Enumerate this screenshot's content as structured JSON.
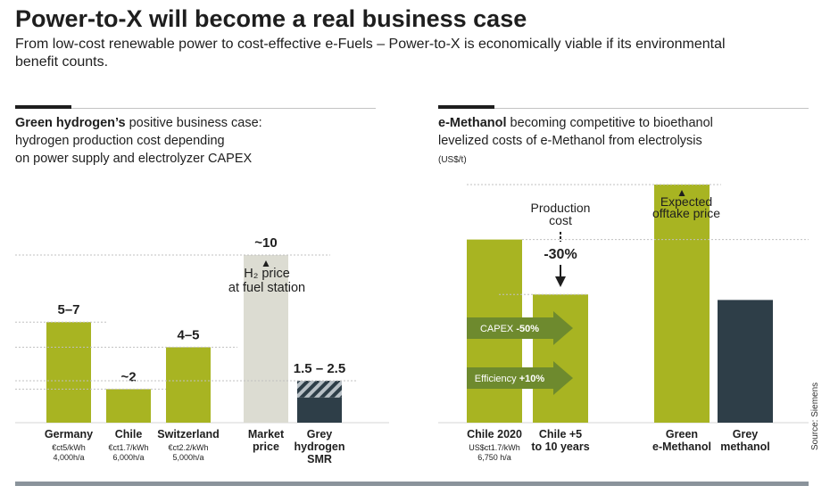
{
  "header": {
    "title": "Power-to-X will become a real business case",
    "subtitle": "From low-cost renewable power to cost-effective e-Fuels – Power-to-X is economically viable if its environmental benefit counts."
  },
  "left_panel": {
    "heading_bold": "Green hydrogen’s",
    "heading_rest": " positive business case:",
    "heading_line2": "hydrogen production cost depending",
    "heading_line3": "on power supply and electrolyzer CAPEX"
  },
  "right_panel": {
    "heading_bold": "e-Methanol",
    "heading_rest": " becoming competitive to bioethanol",
    "heading_line2": "levelized costs of e-Methanol from electrolysis",
    "unit": "(US$/t)"
  },
  "source": "Source: Siemens",
  "colors": {
    "green": "#a8b422",
    "light_grey": "#dcdcd2",
    "dark": "#2e3e48",
    "arrow_green": "#6e8a2e",
    "rule_grey": "#c4c4c4",
    "bottom_bar": "#8a939b"
  },
  "chart_data": [
    {
      "type": "bar",
      "title": "Green hydrogen’s positive business case",
      "categories": [
        {
          "name": "Germany",
          "sub": [
            "€ct5/kWh",
            "4,000h/a"
          ],
          "label": "5–7",
          "value": 6,
          "color": "green"
        },
        {
          "name": "Chile",
          "sub": [
            "€ct1.7/kWh",
            "6,000h/a"
          ],
          "label": "~2",
          "value": 2,
          "color": "green"
        },
        {
          "name": "Switzerland",
          "sub": [
            "€ct2.2/kWh",
            "5,000h/a"
          ],
          "label": "4–5",
          "value": 4.5,
          "color": "green"
        },
        {
          "name": "Market price",
          "lines": [
            "Market",
            "price"
          ],
          "sub": [],
          "label": "~10",
          "value": 10,
          "color": "light_grey",
          "inner_label": [
            "H₂ price",
            "at fuel station"
          ]
        },
        {
          "name": "Grey hydrogen SMR",
          "lines": [
            "Grey",
            "hydrogen",
            "SMR"
          ],
          "sub": [],
          "label": "1.5 – 2.5",
          "value": 2.5,
          "range_low": 1.5,
          "color": "dark"
        }
      ],
      "ylim": [
        0,
        10
      ]
    },
    {
      "type": "bar",
      "title": "e-Methanol becoming competitive to bioethanol",
      "ylabel": "(US$/t)",
      "categories": [
        {
          "name": "Chile 2020",
          "sub": [
            "US$ct1.7/kWh",
            "6,750 h/a"
          ],
          "value": 100,
          "color": "green"
        },
        {
          "name": "Chile +5 to 10 years",
          "lines": [
            "Chile +5",
            "to 10 years"
          ],
          "sub": [],
          "value": 70,
          "color": "green"
        },
        {
          "name": "Green e-Methanol",
          "lines": [
            "Green",
            "e-Methanol"
          ],
          "sub": [],
          "value": 130,
          "color": "green",
          "inner_label": [
            "Expected",
            "offtake price"
          ]
        },
        {
          "name": "Grey methanol",
          "lines": [
            "Grey",
            "methanol"
          ],
          "sub": [],
          "value": 67,
          "color": "dark"
        }
      ],
      "annotations": {
        "production_cost": [
          "Production",
          "cost"
        ],
        "reduction": "-30%",
        "capex_prefix": "CAPEX ",
        "capex_value": "-50%",
        "eff_prefix": "Efficiency ",
        "eff_value": "+10%"
      },
      "ylim": [
        0,
        130
      ]
    }
  ]
}
